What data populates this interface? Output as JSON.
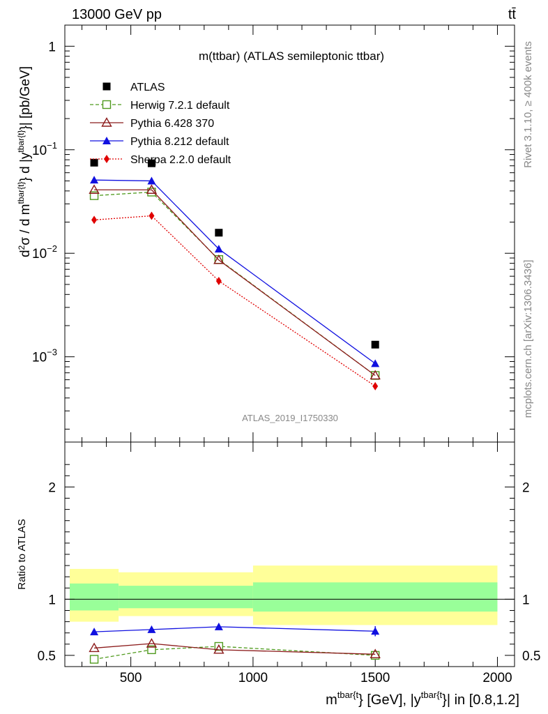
{
  "header": {
    "left": "13000 GeV pp",
    "right": "tt̄"
  },
  "side_labels": {
    "rivet": "Rivet 3.1.10, ≥ 400k events",
    "mcplots": "mcplots.cern.ch [arXiv:1306.3436]"
  },
  "chart_data": [
    {
      "panel": "main",
      "type": "scatter",
      "title": "m(ttbar) (ATLAS semileptonic ttbar)",
      "watermark": "ATLAS_2019_I1750330",
      "ylabel": "d²σ / d m^{tbar{t}} d |y^{tbar{t}}| [pb/GeV]",
      "yscale": "log",
      "ylim": [
        0.00015,
        1.6
      ],
      "xlim": [
        230,
        2070
      ],
      "y_tick_labels": [
        {
          "base": "1",
          "exp": ""
        },
        {
          "base": "10",
          "exp": "−1"
        },
        {
          "base": "10",
          "exp": "−2"
        },
        {
          "base": "10",
          "exp": "−3"
        }
      ],
      "x": [
        350,
        585,
        860,
        1500
      ],
      "series": [
        {
          "name": "ATLAS",
          "color": "#000000",
          "marker": "square",
          "line": "none",
          "values": [
            0.075,
            0.074,
            0.0158,
            0.00131
          ]
        },
        {
          "name": "Herwig 7.2.1 default",
          "color": "#4f9a1d",
          "marker": "open-square",
          "line": "dashed",
          "values": [
            0.036,
            0.039,
            0.0087,
            0.00066
          ]
        },
        {
          "name": "Pythia 6.428 370",
          "color": "#8b1a1a",
          "marker": "open-triangle",
          "line": "solid",
          "values": [
            0.041,
            0.041,
            0.0086,
            0.00066
          ]
        },
        {
          "name": "Pythia 8.212 default",
          "color": "#1010e0",
          "marker": "triangle",
          "line": "solid",
          "values": [
            0.051,
            0.05,
            0.011,
            0.00086
          ]
        },
        {
          "name": "Sherpa 2.2.0 default",
          "color": "#e00000",
          "marker": "diamond",
          "line": "dotted",
          "values": [
            0.021,
            0.023,
            0.0054,
            0.00052
          ]
        }
      ]
    },
    {
      "panel": "ratio",
      "type": "line",
      "ylabel": "Ratio to ATLAS",
      "xlabel": "m^{tbar{t}} [GeV], |y^{tbar{t}}| in [0.8,1.2]",
      "ylim": [
        0.4,
        2.4
      ],
      "xlim": [
        230,
        2070
      ],
      "x_ticks": [
        500,
        1000,
        1500,
        2000
      ],
      "y_ticks": [
        0.5,
        1,
        2
      ],
      "x_tick_labels": [
        "500",
        "1000",
        "1500",
        "2000"
      ],
      "y_tick_labels": [
        "0.5",
        "1",
        "2"
      ],
      "bands": [
        {
          "xmin": 250,
          "xmax": 450,
          "inner": [
            0.9,
            1.14
          ],
          "outer": [
            0.8,
            1.27
          ]
        },
        {
          "xmin": 450,
          "xmax": 1000,
          "inner": [
            0.92,
            1.12
          ],
          "outer": [
            0.85,
            1.24
          ]
        },
        {
          "xmin": 1000,
          "xmax": 2000,
          "inner": [
            0.89,
            1.15
          ],
          "outer": [
            0.77,
            1.3
          ]
        }
      ],
      "x": [
        350,
        585,
        860,
        1500
      ],
      "series": [
        {
          "name": "Herwig 7.2.1 default",
          "color": "#4f9a1d",
          "marker": "open-square",
          "line": "dashed",
          "values": [
            0.465,
            0.55,
            0.58,
            0.5
          ]
        },
        {
          "name": "Pythia 6.428 370",
          "color": "#8b1a1a",
          "marker": "open-triangle",
          "line": "solid",
          "values": [
            0.565,
            0.605,
            0.55,
            0.51
          ]
        },
        {
          "name": "Pythia 8.212 default",
          "color": "#1010e0",
          "marker": "triangle",
          "line": "solid",
          "values": [
            0.71,
            0.73,
            0.755,
            0.715
          ],
          "errors": [
            0.0,
            0.0,
            0.02,
            0.045
          ]
        }
      ]
    }
  ]
}
